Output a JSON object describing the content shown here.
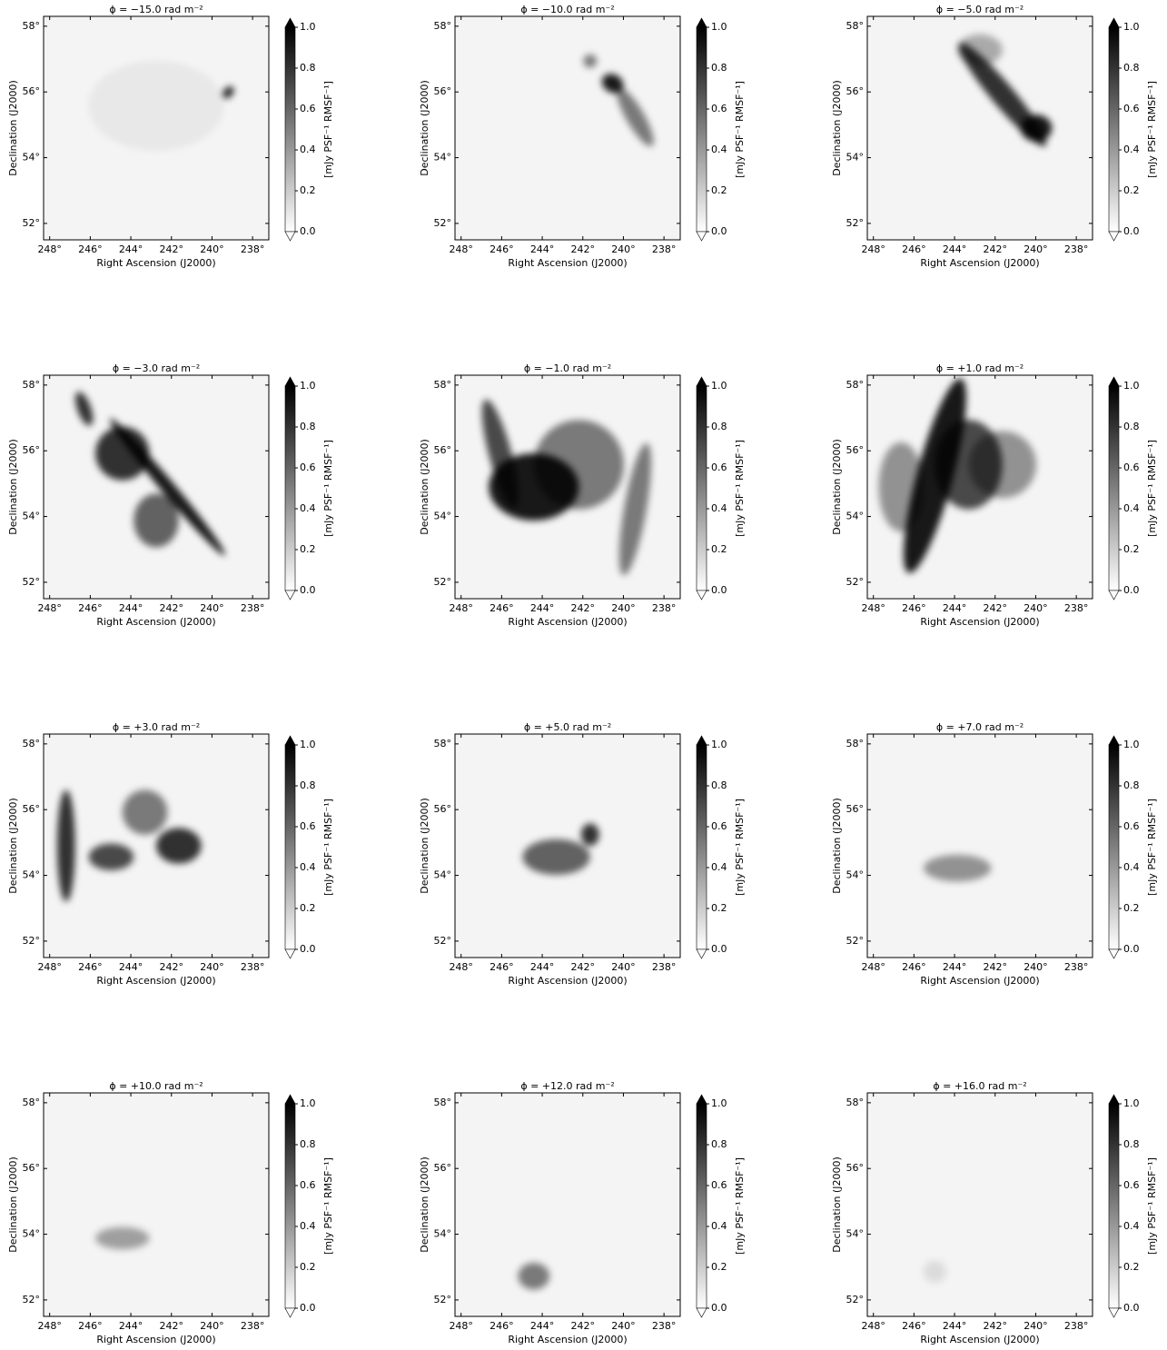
{
  "chart_data": [
    {
      "type": "image",
      "title": "ϕ = −15.0 rad m⁻²",
      "xlabel": "Right Ascension (J2000)",
      "ylabel": "Declination (J2000)",
      "xlim": [
        248.3,
        237.2
      ],
      "ylim": [
        51.5,
        58.3
      ],
      "xticks": [
        {
          "value": 248,
          "label": "248°"
        },
        {
          "value": 246,
          "label": "246°"
        },
        {
          "value": 244,
          "label": "244°"
        },
        {
          "value": 242,
          "label": "242°"
        },
        {
          "value": 240,
          "label": "240°"
        },
        {
          "value": 238,
          "label": "238°"
        }
      ],
      "yticks": [
        {
          "value": 52,
          "label": "52°"
        },
        {
          "value": 54,
          "label": "54°"
        },
        {
          "value": 56,
          "label": "56°"
        },
        {
          "value": 58,
          "label": "58°"
        }
      ],
      "colorbar": {
        "label": "[mJy PSF⁻¹ RMSF⁻¹]",
        "lim": [
          0,
          1
        ],
        "ticks": [
          {
            "value": 0,
            "label": "0.0"
          },
          {
            "value": 0.2,
            "label": "0.2"
          },
          {
            "value": 0.4,
            "label": "0.4"
          },
          {
            "value": 0.6,
            "label": "0.6"
          },
          {
            "value": 0.8,
            "label": "0.8"
          },
          {
            "value": 1,
            "label": "1.0"
          }
        ]
      }
    },
    {
      "type": "image",
      "title": "ϕ = −10.0 rad m⁻²",
      "xlabel": "Right Ascension (J2000)",
      "ylabel": "Declination (J2000)",
      "xlim": [
        248.3,
        237.2
      ],
      "ylim": [
        51.5,
        58.3
      ],
      "xticks": [
        {
          "value": 248,
          "label": "248°"
        },
        {
          "value": 246,
          "label": "246°"
        },
        {
          "value": 244,
          "label": "244°"
        },
        {
          "value": 242,
          "label": "242°"
        },
        {
          "value": 240,
          "label": "240°"
        },
        {
          "value": 238,
          "label": "238°"
        }
      ],
      "yticks": [
        {
          "value": 52,
          "label": "52°"
        },
        {
          "value": 54,
          "label": "54°"
        },
        {
          "value": 56,
          "label": "56°"
        },
        {
          "value": 58,
          "label": "58°"
        }
      ],
      "colorbar": {
        "label": "[mJy PSF⁻¹ RMSF⁻¹]",
        "lim": [
          0,
          1
        ],
        "ticks": [
          {
            "value": 0,
            "label": "0.0"
          },
          {
            "value": 0.2,
            "label": "0.2"
          },
          {
            "value": 0.4,
            "label": "0.4"
          },
          {
            "value": 0.6,
            "label": "0.6"
          },
          {
            "value": 0.8,
            "label": "0.8"
          },
          {
            "value": 1,
            "label": "1.0"
          }
        ]
      }
    },
    {
      "type": "image",
      "title": "ϕ = −5.0 rad m⁻²",
      "xlabel": "Right Ascension (J2000)",
      "ylabel": "Declination (J2000)",
      "xlim": [
        248.3,
        237.2
      ],
      "ylim": [
        51.5,
        58.3
      ],
      "xticks": [
        {
          "value": 248,
          "label": "248°"
        },
        {
          "value": 246,
          "label": "246°"
        },
        {
          "value": 244,
          "label": "244°"
        },
        {
          "value": 242,
          "label": "242°"
        },
        {
          "value": 240,
          "label": "240°"
        },
        {
          "value": 238,
          "label": "238°"
        }
      ],
      "yticks": [
        {
          "value": 52,
          "label": "52°"
        },
        {
          "value": 54,
          "label": "54°"
        },
        {
          "value": 56,
          "label": "56°"
        },
        {
          "value": 58,
          "label": "58°"
        }
      ],
      "colorbar": {
        "label": "[mJy PSF⁻¹ RMSF⁻¹]",
        "lim": [
          0,
          1
        ],
        "ticks": [
          {
            "value": 0,
            "label": "0.0"
          },
          {
            "value": 0.2,
            "label": "0.2"
          },
          {
            "value": 0.4,
            "label": "0.4"
          },
          {
            "value": 0.6,
            "label": "0.6"
          },
          {
            "value": 0.8,
            "label": "0.8"
          },
          {
            "value": 1,
            "label": "1.0"
          }
        ]
      }
    },
    {
      "type": "image",
      "title": "ϕ = −3.0 rad m⁻²",
      "xlabel": "Right Ascension (J2000)",
      "ylabel": "Declination (J2000)",
      "xlim": [
        248.3,
        237.2
      ],
      "ylim": [
        51.5,
        58.3
      ],
      "xticks": [
        {
          "value": 248,
          "label": "248°"
        },
        {
          "value": 246,
          "label": "246°"
        },
        {
          "value": 244,
          "label": "244°"
        },
        {
          "value": 242,
          "label": "242°"
        },
        {
          "value": 240,
          "label": "240°"
        },
        {
          "value": 238,
          "label": "238°"
        }
      ],
      "yticks": [
        {
          "value": 52,
          "label": "52°"
        },
        {
          "value": 54,
          "label": "54°"
        },
        {
          "value": 56,
          "label": "56°"
        },
        {
          "value": 58,
          "label": "58°"
        }
      ],
      "colorbar": {
        "label": "[mJy PSF⁻¹ RMSF⁻¹]",
        "lim": [
          0,
          1
        ],
        "ticks": [
          {
            "value": 0,
            "label": "0.0"
          },
          {
            "value": 0.2,
            "label": "0.2"
          },
          {
            "value": 0.4,
            "label": "0.4"
          },
          {
            "value": 0.6,
            "label": "0.6"
          },
          {
            "value": 0.8,
            "label": "0.8"
          },
          {
            "value": 1,
            "label": "1.0"
          }
        ]
      }
    },
    {
      "type": "image",
      "title": "ϕ = −1.0 rad m⁻²",
      "xlabel": "Right Ascension (J2000)",
      "ylabel": "Declination (J2000)",
      "xlim": [
        248.3,
        237.2
      ],
      "ylim": [
        51.5,
        58.3
      ],
      "xticks": [
        {
          "value": 248,
          "label": "248°"
        },
        {
          "value": 246,
          "label": "246°"
        },
        {
          "value": 244,
          "label": "244°"
        },
        {
          "value": 242,
          "label": "242°"
        },
        {
          "value": 240,
          "label": "240°"
        },
        {
          "value": 238,
          "label": "238°"
        }
      ],
      "yticks": [
        {
          "value": 52,
          "label": "52°"
        },
        {
          "value": 54,
          "label": "54°"
        },
        {
          "value": 56,
          "label": "56°"
        },
        {
          "value": 58,
          "label": "58°"
        }
      ],
      "colorbar": {
        "label": "[mJy PSF⁻¹ RMSF⁻¹]",
        "lim": [
          0,
          1
        ],
        "ticks": [
          {
            "value": 0,
            "label": "0.0"
          },
          {
            "value": 0.2,
            "label": "0.2"
          },
          {
            "value": 0.4,
            "label": "0.4"
          },
          {
            "value": 0.6,
            "label": "0.6"
          },
          {
            "value": 0.8,
            "label": "0.8"
          },
          {
            "value": 1,
            "label": "1.0"
          }
        ]
      }
    },
    {
      "type": "image",
      "title": "ϕ = +1.0 rad m⁻²",
      "xlabel": "Right Ascension (J2000)",
      "ylabel": "Declination (J2000)",
      "xlim": [
        248.3,
        237.2
      ],
      "ylim": [
        51.5,
        58.3
      ],
      "xticks": [
        {
          "value": 248,
          "label": "248°"
        },
        {
          "value": 246,
          "label": "246°"
        },
        {
          "value": 244,
          "label": "244°"
        },
        {
          "value": 242,
          "label": "242°"
        },
        {
          "value": 240,
          "label": "240°"
        },
        {
          "value": 238,
          "label": "238°"
        }
      ],
      "yticks": [
        {
          "value": 52,
          "label": "52°"
        },
        {
          "value": 54,
          "label": "54°"
        },
        {
          "value": 56,
          "label": "56°"
        },
        {
          "value": 58,
          "label": "58°"
        }
      ],
      "colorbar": {
        "label": "[mJy PSF⁻¹ RMSF⁻¹]",
        "lim": [
          0,
          1
        ],
        "ticks": [
          {
            "value": 0,
            "label": "0.0"
          },
          {
            "value": 0.2,
            "label": "0.2"
          },
          {
            "value": 0.4,
            "label": "0.4"
          },
          {
            "value": 0.6,
            "label": "0.6"
          },
          {
            "value": 0.8,
            "label": "0.8"
          },
          {
            "value": 1,
            "label": "1.0"
          }
        ]
      }
    },
    {
      "type": "image",
      "title": "ϕ = +3.0 rad m⁻²",
      "xlabel": "Right Ascension (J2000)",
      "ylabel": "Declination (J2000)",
      "xlim": [
        248.3,
        237.2
      ],
      "ylim": [
        51.5,
        58.3
      ],
      "xticks": [
        {
          "value": 248,
          "label": "248°"
        },
        {
          "value": 246,
          "label": "246°"
        },
        {
          "value": 244,
          "label": "244°"
        },
        {
          "value": 242,
          "label": "242°"
        },
        {
          "value": 240,
          "label": "240°"
        },
        {
          "value": 238,
          "label": "238°"
        }
      ],
      "yticks": [
        {
          "value": 52,
          "label": "52°"
        },
        {
          "value": 54,
          "label": "54°"
        },
        {
          "value": 56,
          "label": "56°"
        },
        {
          "value": 58,
          "label": "58°"
        }
      ],
      "colorbar": {
        "label": "[mJy PSF⁻¹ RMSF⁻¹]",
        "lim": [
          0,
          1
        ],
        "ticks": [
          {
            "value": 0,
            "label": "0.0"
          },
          {
            "value": 0.2,
            "label": "0.2"
          },
          {
            "value": 0.4,
            "label": "0.4"
          },
          {
            "value": 0.6,
            "label": "0.6"
          },
          {
            "value": 0.8,
            "label": "0.8"
          },
          {
            "value": 1,
            "label": "1.0"
          }
        ]
      }
    },
    {
      "type": "image",
      "title": "ϕ = +5.0 rad m⁻²",
      "xlabel": "Right Ascension (J2000)",
      "ylabel": "Declination (J2000)",
      "xlim": [
        248.3,
        237.2
      ],
      "ylim": [
        51.5,
        58.3
      ],
      "xticks": [
        {
          "value": 248,
          "label": "248°"
        },
        {
          "value": 246,
          "label": "246°"
        },
        {
          "value": 244,
          "label": "244°"
        },
        {
          "value": 242,
          "label": "242°"
        },
        {
          "value": 240,
          "label": "240°"
        },
        {
          "value": 238,
          "label": "238°"
        }
      ],
      "yticks": [
        {
          "value": 52,
          "label": "52°"
        },
        {
          "value": 54,
          "label": "54°"
        },
        {
          "value": 56,
          "label": "56°"
        },
        {
          "value": 58,
          "label": "58°"
        }
      ],
      "colorbar": {
        "label": "[mJy PSF⁻¹ RMSF⁻¹]",
        "lim": [
          0,
          1
        ],
        "ticks": [
          {
            "value": 0,
            "label": "0.0"
          },
          {
            "value": 0.2,
            "label": "0.2"
          },
          {
            "value": 0.4,
            "label": "0.4"
          },
          {
            "value": 0.6,
            "label": "0.6"
          },
          {
            "value": 0.8,
            "label": "0.8"
          },
          {
            "value": 1,
            "label": "1.0"
          }
        ]
      }
    },
    {
      "type": "image",
      "title": "ϕ = +7.0 rad m⁻²",
      "xlabel": "Right Ascension (J2000)",
      "ylabel": "Declination (J2000)",
      "xlim": [
        248.3,
        237.2
      ],
      "ylim": [
        51.5,
        58.3
      ],
      "xticks": [
        {
          "value": 248,
          "label": "248°"
        },
        {
          "value": 246,
          "label": "246°"
        },
        {
          "value": 244,
          "label": "244°"
        },
        {
          "value": 242,
          "label": "242°"
        },
        {
          "value": 240,
          "label": "240°"
        },
        {
          "value": 238,
          "label": "238°"
        }
      ],
      "yticks": [
        {
          "value": 52,
          "label": "52°"
        },
        {
          "value": 54,
          "label": "54°"
        },
        {
          "value": 56,
          "label": "56°"
        },
        {
          "value": 58,
          "label": "58°"
        }
      ],
      "colorbar": {
        "label": "[mJy PSF⁻¹ RMSF⁻¹]",
        "lim": [
          0,
          1
        ],
        "ticks": [
          {
            "value": 0,
            "label": "0.0"
          },
          {
            "value": 0.2,
            "label": "0.2"
          },
          {
            "value": 0.4,
            "label": "0.4"
          },
          {
            "value": 0.6,
            "label": "0.6"
          },
          {
            "value": 0.8,
            "label": "0.8"
          },
          {
            "value": 1,
            "label": "1.0"
          }
        ]
      }
    },
    {
      "type": "image",
      "title": "ϕ = +10.0 rad m⁻²",
      "xlabel": "Right Ascension (J2000)",
      "ylabel": "Declination (J2000)",
      "xlim": [
        248.3,
        237.2
      ],
      "ylim": [
        51.5,
        58.3
      ],
      "xticks": [
        {
          "value": 248,
          "label": "248°"
        },
        {
          "value": 246,
          "label": "246°"
        },
        {
          "value": 244,
          "label": "244°"
        },
        {
          "value": 242,
          "label": "242°"
        },
        {
          "value": 240,
          "label": "240°"
        },
        {
          "value": 238,
          "label": "238°"
        }
      ],
      "yticks": [
        {
          "value": 52,
          "label": "52°"
        },
        {
          "value": 54,
          "label": "54°"
        },
        {
          "value": 56,
          "label": "56°"
        },
        {
          "value": 58,
          "label": "58°"
        }
      ],
      "colorbar": {
        "label": "[mJy PSF⁻¹ RMSF⁻¹]",
        "lim": [
          0,
          1
        ],
        "ticks": [
          {
            "value": 0,
            "label": "0.0"
          },
          {
            "value": 0.2,
            "label": "0.2"
          },
          {
            "value": 0.4,
            "label": "0.4"
          },
          {
            "value": 0.6,
            "label": "0.6"
          },
          {
            "value": 0.8,
            "label": "0.8"
          },
          {
            "value": 1,
            "label": "1.0"
          }
        ]
      }
    },
    {
      "type": "image",
      "title": "ϕ = +12.0 rad m⁻²",
      "xlabel": "Right Ascension (J2000)",
      "ylabel": "Declination (J2000)",
      "xlim": [
        248.3,
        237.2
      ],
      "ylim": [
        51.5,
        58.3
      ],
      "xticks": [
        {
          "value": 248,
          "label": "248°"
        },
        {
          "value": 246,
          "label": "246°"
        },
        {
          "value": 244,
          "label": "244°"
        },
        {
          "value": 242,
          "label": "242°"
        },
        {
          "value": 240,
          "label": "240°"
        },
        {
          "value": 238,
          "label": "238°"
        }
      ],
      "yticks": [
        {
          "value": 52,
          "label": "52°"
        },
        {
          "value": 54,
          "label": "54°"
        },
        {
          "value": 56,
          "label": "56°"
        },
        {
          "value": 58,
          "label": "58°"
        }
      ],
      "colorbar": {
        "label": "[mJy PSF⁻¹ RMSF⁻¹]",
        "lim": [
          0,
          1
        ],
        "ticks": [
          {
            "value": 0,
            "label": "0.0"
          },
          {
            "value": 0.2,
            "label": "0.2"
          },
          {
            "value": 0.4,
            "label": "0.4"
          },
          {
            "value": 0.6,
            "label": "0.6"
          },
          {
            "value": 0.8,
            "label": "0.8"
          },
          {
            "value": 1,
            "label": "1.0"
          }
        ]
      }
    },
    {
      "type": "image",
      "title": "ϕ = +16.0 rad m⁻²",
      "xlabel": "Right Ascension (J2000)",
      "ylabel": "Declination (J2000)",
      "xlim": [
        248.3,
        237.2
      ],
      "ylim": [
        51.5,
        58.3
      ],
      "xticks": [
        {
          "value": 248,
          "label": "248°"
        },
        {
          "value": 246,
          "label": "246°"
        },
        {
          "value": 244,
          "label": "244°"
        },
        {
          "value": 242,
          "label": "242°"
        },
        {
          "value": 240,
          "label": "240°"
        },
        {
          "value": 238,
          "label": "238°"
        }
      ],
      "yticks": [
        {
          "value": 52,
          "label": "52°"
        },
        {
          "value": 54,
          "label": "54°"
        },
        {
          "value": 56,
          "label": "56°"
        },
        {
          "value": 58,
          "label": "58°"
        }
      ],
      "colorbar": {
        "label": "[mJy PSF⁻¹ RMSF⁻¹]",
        "lim": [
          0,
          1
        ],
        "ticks": [
          {
            "value": 0,
            "label": "0.0"
          },
          {
            "value": 0.2,
            "label": "0.2"
          },
          {
            "value": 0.4,
            "label": "0.4"
          },
          {
            "value": 0.6,
            "label": "0.6"
          },
          {
            "value": 0.8,
            "label": "0.8"
          },
          {
            "value": 1,
            "label": "1.0"
          }
        ]
      }
    }
  ]
}
